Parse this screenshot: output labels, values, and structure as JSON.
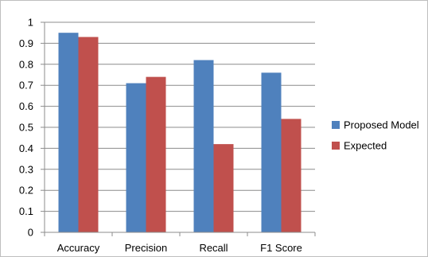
{
  "chart_data": {
    "type": "bar",
    "categories": [
      "Accuracy",
      "Precision",
      "Recall",
      "F1 Score"
    ],
    "series": [
      {
        "name": "Proposed Model",
        "color": "#4f81bd",
        "values": [
          0.95,
          0.71,
          0.82,
          0.76
        ]
      },
      {
        "name": "Expected",
        "color": "#c0504d",
        "values": [
          0.93,
          0.74,
          0.42,
          0.54
        ]
      }
    ],
    "ylim": [
      0,
      1
    ],
    "yticks": [
      "0",
      "0.1",
      "0.2",
      "0.3",
      "0.4",
      "0.5",
      "0.6",
      "0.7",
      "0.8",
      "0.9",
      "1"
    ],
    "grid": true,
    "legend_position": "right"
  }
}
